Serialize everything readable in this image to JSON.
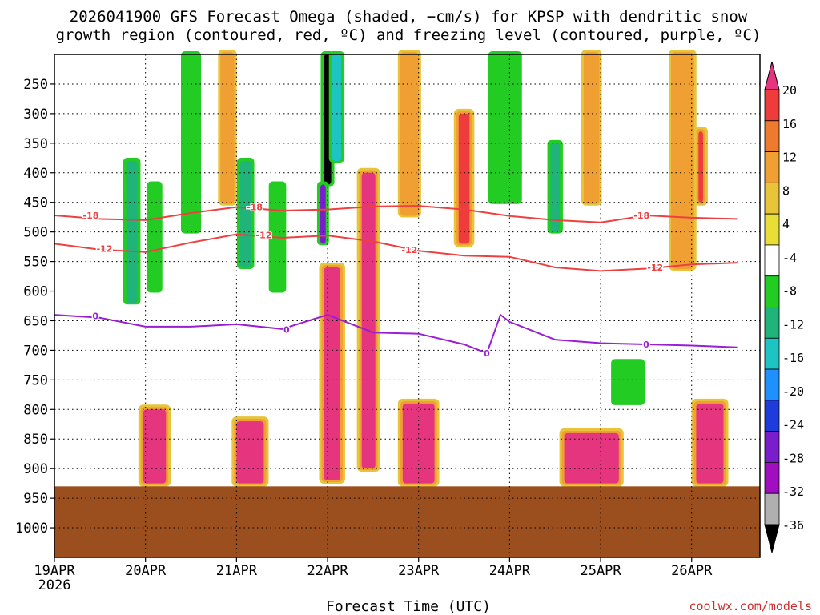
{
  "chart_data": {
    "type": "heatmap",
    "title_line1": "2026041900 GFS Forecast Omega (shaded, −cm/s) for KPSP with dendritic snow",
    "title_line2": "growth region (contoured, red, ºC) and freezing level (contoured, purple, ºC)",
    "xlabel": "Forecast Time (UTC)",
    "credit": "coolwx.com/models",
    "x_range": [
      0,
      7.75
    ],
    "x_ticks": [
      {
        "v": 0,
        "label": "19APR",
        "sub": "2026"
      },
      {
        "v": 1,
        "label": "20APR",
        "sub": ""
      },
      {
        "v": 2,
        "label": "21APR",
        "sub": ""
      },
      {
        "v": 3,
        "label": "22APR",
        "sub": ""
      },
      {
        "v": 4,
        "label": "23APR",
        "sub": ""
      },
      {
        "v": 5,
        "label": "24APR",
        "sub": ""
      },
      {
        "v": 6,
        "label": "25APR",
        "sub": ""
      },
      {
        "v": 7,
        "label": "26APR",
        "sub": ""
      }
    ],
    "y_range_hPa": [
      200,
      1050
    ],
    "y_ticks": [
      {
        "v": 250,
        "label": "250"
      },
      {
        "v": 300,
        "label": "300"
      },
      {
        "v": 350,
        "label": "350"
      },
      {
        "v": 400,
        "label": "400"
      },
      {
        "v": 450,
        "label": "450"
      },
      {
        "v": 500,
        "label": "500"
      },
      {
        "v": 550,
        "label": "550"
      },
      {
        "v": 600,
        "label": "600"
      },
      {
        "v": 650,
        "label": "650"
      },
      {
        "v": 700,
        "label": "700"
      },
      {
        "v": 750,
        "label": "750"
      },
      {
        "v": 800,
        "label": "800"
      },
      {
        "v": 850,
        "label": "850"
      },
      {
        "v": 900,
        "label": "900"
      },
      {
        "v": 950,
        "label": "950"
      },
      {
        "v": 1000,
        "label": "1000"
      }
    ],
    "surface_pressure_hPa": 930,
    "surface_color": "#9b4f1e",
    "colorbar": {
      "labels": [
        "20",
        "16",
        "12",
        "8",
        "4",
        "-4",
        "-8",
        "-12",
        "-16",
        "-20",
        "-24",
        "-28",
        "-32",
        "-36"
      ],
      "colors": [
        "#e6357f",
        "#ee3b3b",
        "#ee7a2d",
        "#f0a032",
        "#e8c43a",
        "#e8de36",
        "#ffffff",
        "#22cc22",
        "#20b37a",
        "#1ec4c4",
        "#1e90ff",
        "#1e3cdc",
        "#7a1ecc",
        "#a00ec0",
        "#b0b0b0",
        "#000000"
      ]
    },
    "series": [
      {
        "name": "-18",
        "color": "#ee4040",
        "points": [
          [
            0,
            472
          ],
          [
            0.5,
            478
          ],
          [
            1,
            480
          ],
          [
            1.5,
            468
          ],
          [
            2,
            458
          ],
          [
            2.5,
            464
          ],
          [
            3,
            462
          ],
          [
            3.5,
            457
          ],
          [
            4,
            456
          ],
          [
            4.5,
            462
          ],
          [
            5,
            473
          ],
          [
            5.5,
            480
          ],
          [
            6,
            484
          ],
          [
            6.5,
            472
          ],
          [
            7,
            476
          ],
          [
            7.5,
            478
          ]
        ]
      },
      {
        "name": "-12",
        "color": "#ee4040",
        "points": [
          [
            0,
            520
          ],
          [
            0.5,
            530
          ],
          [
            1,
            534
          ],
          [
            1.5,
            518
          ],
          [
            2,
            504
          ],
          [
            2.5,
            510
          ],
          [
            3,
            506
          ],
          [
            3.5,
            516
          ],
          [
            4,
            532
          ],
          [
            4.5,
            540
          ],
          [
            5,
            542
          ],
          [
            5.5,
            560
          ],
          [
            6,
            566
          ],
          [
            6.5,
            562
          ],
          [
            7,
            555
          ],
          [
            7.5,
            552
          ]
        ]
      },
      {
        "name": "0",
        "color": "#9a1ed2",
        "points": [
          [
            0,
            640
          ],
          [
            0.5,
            645
          ],
          [
            1,
            660
          ],
          [
            1.5,
            660
          ],
          [
            2,
            656
          ],
          [
            2.5,
            664
          ],
          [
            3,
            640
          ],
          [
            3.5,
            670
          ],
          [
            4,
            672
          ],
          [
            4.5,
            690
          ],
          [
            4.75,
            705
          ],
          [
            4.9,
            640
          ],
          [
            5,
            652
          ],
          [
            5.5,
            682
          ],
          [
            6,
            688
          ],
          [
            6.5,
            690
          ],
          [
            7,
            692
          ],
          [
            7.5,
            695
          ]
        ]
      }
    ],
    "contour_labels": [
      {
        "text": "-18",
        "x": 0.4,
        "p": 472
      },
      {
        "text": "-18",
        "x": 2.2,
        "p": 458
      },
      {
        "text": "-18",
        "x": 6.45,
        "p": 472
      },
      {
        "text": "-12",
        "x": 0.55,
        "p": 528
      },
      {
        "text": "-12",
        "x": 2.3,
        "p": 505
      },
      {
        "text": "-12",
        "x": 3.9,
        "p": 530
      },
      {
        "text": "-12",
        "x": 6.6,
        "p": 560
      },
      {
        "text": "0",
        "x": 0.45,
        "p": 642
      },
      {
        "text": "0",
        "x": 2.55,
        "p": 665
      },
      {
        "text": "0",
        "x": 4.75,
        "p": 705
      },
      {
        "text": "0",
        "x": 6.5,
        "p": 690
      }
    ],
    "omega_blobs": [
      {
        "x": 3.0,
        "w": 0.08,
        "p1": 200,
        "p2": 420,
        "v": -36
      },
      {
        "x": 2.95,
        "w": 0.06,
        "p1": 420,
        "p2": 520,
        "v": -28
      },
      {
        "x": 3.1,
        "w": 0.1,
        "p1": 200,
        "p2": 380,
        "v": -16
      },
      {
        "x": 0.85,
        "w": 0.12,
        "p1": 380,
        "p2": 620,
        "v": -12
      },
      {
        "x": 1.1,
        "w": 0.1,
        "p1": 420,
        "p2": 600,
        "v": -8
      },
      {
        "x": 2.1,
        "w": 0.12,
        "p1": 380,
        "p2": 560,
        "v": -12
      },
      {
        "x": 2.45,
        "w": 0.12,
        "p1": 420,
        "p2": 600,
        "v": -8
      },
      {
        "x": 1.5,
        "w": 0.15,
        "p1": 200,
        "p2": 500,
        "v": -8
      },
      {
        "x": 4.95,
        "w": 0.3,
        "p1": 200,
        "p2": 450,
        "v": -8
      },
      {
        "x": 5.5,
        "w": 0.1,
        "p1": 350,
        "p2": 500,
        "v": -12
      },
      {
        "x": 6.3,
        "w": 0.3,
        "p1": 720,
        "p2": 790,
        "v": -8
      },
      {
        "x": 3.45,
        "w": 0.15,
        "p1": 400,
        "p2": 900,
        "v": 20
      },
      {
        "x": 3.05,
        "w": 0.18,
        "p1": 560,
        "p2": 920,
        "v": 20
      },
      {
        "x": 4.5,
        "w": 0.12,
        "p1": 300,
        "p2": 520,
        "v": 16
      },
      {
        "x": 1.1,
        "w": 0.25,
        "p1": 800,
        "p2": 925,
        "v": 20
      },
      {
        "x": 2.15,
        "w": 0.3,
        "p1": 820,
        "p2": 925,
        "v": 20
      },
      {
        "x": 4.0,
        "w": 0.35,
        "p1": 790,
        "p2": 925,
        "v": 20
      },
      {
        "x": 5.9,
        "w": 0.6,
        "p1": 840,
        "p2": 925,
        "v": 20
      },
      {
        "x": 7.2,
        "w": 0.3,
        "p1": 790,
        "p2": 925,
        "v": 20
      },
      {
        "x": 7.1,
        "w": 0.05,
        "p1": 330,
        "p2": 450,
        "v": 16
      },
      {
        "x": 6.9,
        "w": 0.2,
        "p1": 200,
        "p2": 560,
        "v": 8
      },
      {
        "x": 1.9,
        "w": 0.1,
        "p1": 200,
        "p2": 450,
        "v": 8
      },
      {
        "x": 3.9,
        "w": 0.15,
        "p1": 200,
        "p2": 470,
        "v": 8
      },
      {
        "x": 5.9,
        "w": 0.12,
        "p1": 200,
        "p2": 450,
        "v": 8
      }
    ]
  }
}
